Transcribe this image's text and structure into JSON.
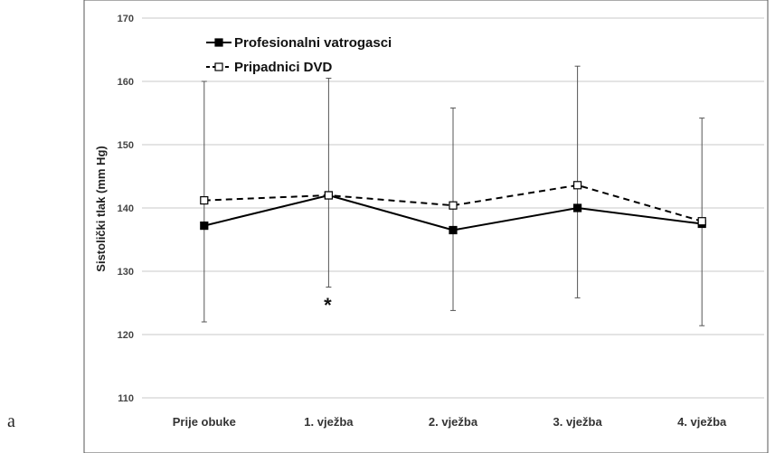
{
  "figure_label": "a",
  "chart_data": {
    "type": "line",
    "title": "",
    "xlabel": "",
    "ylabel": "Sistolički tlak (mm Hg)",
    "ylim": [
      110,
      170
    ],
    "yticks": [
      110,
      120,
      130,
      140,
      150,
      160,
      170
    ],
    "categories": [
      "Prije obuke",
      "1. vježba",
      "2. vježba",
      "3. vježba",
      "4. vježba"
    ],
    "grid": true,
    "legend_position": "top-left",
    "series": [
      {
        "name": "Profesionalni vatrogasci",
        "marker": "filled-square",
        "line": "solid",
        "color": "#000000",
        "values": [
          137.2,
          142.0,
          136.5,
          140.0,
          137.5
        ]
      },
      {
        "name": "Pripadnici DVD",
        "marker": "open-square",
        "line": "dashed",
        "color": "#000000",
        "values": [
          141.2,
          142.0,
          140.4,
          143.6,
          137.9
        ]
      }
    ],
    "error_bars": [
      {
        "category": "Prije obuke",
        "low": 122.0,
        "high": 160.0
      },
      {
        "category": "1. vježba",
        "low": 127.5,
        "high": 160.5
      },
      {
        "category": "2. vježba",
        "low": 123.8,
        "high": 155.8
      },
      {
        "category": "3. vježba",
        "low": 125.8,
        "high": 162.4
      },
      {
        "category": "4. vježba",
        "low": 121.4,
        "high": 154.2
      }
    ],
    "annotations": [
      {
        "text": "*",
        "category": "1. vježba",
        "y": 125
      }
    ]
  }
}
